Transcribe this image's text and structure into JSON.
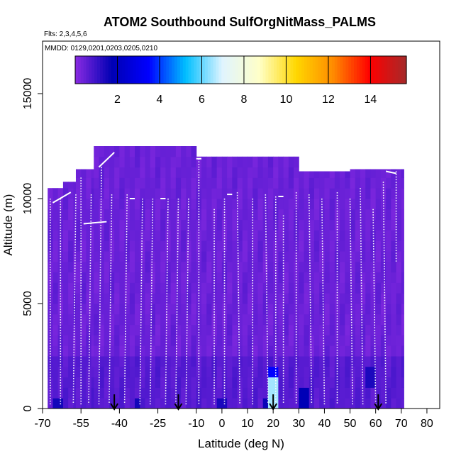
{
  "chart_data": {
    "type": "heatmap",
    "title": "ATOM2 Southbound SulfOrgNitMass_PALMS",
    "subtitle_flights": "Flts: 2,3,4,5,6",
    "subtitle_dates": "MMDD: 0129,0201,0203,0205,0210",
    "xlabel": "Latitude (deg N)",
    "ylabel": "Altitude (m)",
    "xlim": [
      -70,
      85
    ],
    "ylim": [
      0,
      17500
    ],
    "x_ticks": [
      -70,
      -55,
      -40,
      -25,
      -10,
      0,
      10,
      20,
      30,
      40,
      50,
      60,
      70,
      80
    ],
    "y_ticks": [
      0,
      5000,
      10000,
      15000
    ],
    "colorbar": {
      "range": [
        0,
        15.7
      ],
      "ticks": [
        2,
        4,
        6,
        8,
        10,
        12,
        14
      ],
      "stops": [
        "#8a2be2",
        "#0000b4",
        "#0000ff",
        "#00bfff",
        "#e0f4ff",
        "#ffffc8",
        "#ffd700",
        "#ff8c00",
        "#ff0000",
        "#a52a2a"
      ]
    },
    "background_value": 0.4,
    "arrows_at_lat": [
      -42,
      -17,
      20,
      61
    ],
    "coverage_columns": [
      {
        "lat0": -68,
        "lat1": -62,
        "top": 10500
      },
      {
        "lat0": -62,
        "lat1": -57,
        "top": 10800
      },
      {
        "lat0": -57,
        "lat1": -50,
        "top": 11400
      },
      {
        "lat0": -50,
        "lat1": -10,
        "top": 12500
      },
      {
        "lat0": -10,
        "lat1": 30,
        "top": 12000
      },
      {
        "lat0": 30,
        "lat1": 50,
        "top": 11300
      },
      {
        "lat0": 50,
        "lat1": 60,
        "top": 11400
      },
      {
        "lat0": 60,
        "lat1": 71,
        "top": 11400
      }
    ],
    "hotspots": [
      {
        "lat": 20,
        "alt0": 0,
        "alt1": 1600,
        "value": 6.5
      },
      {
        "lat": 20,
        "alt0": 1600,
        "alt1": 2000,
        "value": 3.5
      },
      {
        "lat": 19,
        "alt0": 0,
        "alt1": 500,
        "value": 2.2
      },
      {
        "lat": 17,
        "alt0": 0,
        "alt1": 400,
        "value": 1.6
      },
      {
        "lat": 32,
        "alt0": 0,
        "alt1": 1000,
        "value": 1.8
      },
      {
        "lat": -33,
        "alt0": 0,
        "alt1": 400,
        "value": 1.5
      },
      {
        "lat": -64,
        "alt0": 0,
        "alt1": 400,
        "value": 1.5
      },
      {
        "lat": 58,
        "alt0": 1200,
        "alt1": 2200,
        "value": 1.4
      },
      {
        "lat": 0,
        "alt0": 0,
        "alt1": 400,
        "value": 1.4
      }
    ],
    "flight_profiles": [
      {
        "lat_top": -67,
        "alt_top": 10000,
        "lat_bot": -67,
        "alt_bot": 200
      },
      {
        "lat_top": -63,
        "alt_top": 10000,
        "lat_bot": -63,
        "alt_bot": 200
      },
      {
        "lat_top": -57,
        "alt_top": 10200,
        "lat_bot": -58,
        "alt_bot": 200
      },
      {
        "lat_top": -55,
        "alt_top": 11000,
        "lat_bot": -55,
        "alt_bot": 200
      },
      {
        "lat_top": -51,
        "alt_top": 10200,
        "lat_bot": -52,
        "alt_bot": 200
      },
      {
        "lat_top": -47,
        "alt_top": 11500,
        "lat_bot": -48,
        "alt_bot": 200
      },
      {
        "lat_top": -43,
        "alt_top": 10200,
        "lat_bot": -44,
        "alt_bot": 200
      },
      {
        "lat_top": -37,
        "alt_top": 10200,
        "lat_bot": -38,
        "alt_bot": 200
      },
      {
        "lat_top": -31,
        "alt_top": 10000,
        "lat_bot": -32,
        "alt_bot": 200
      },
      {
        "lat_top": -27,
        "alt_top": 10000,
        "lat_bot": -28,
        "alt_bot": 200
      },
      {
        "lat_top": -21,
        "alt_top": 10000,
        "lat_bot": -22,
        "alt_bot": 200
      },
      {
        "lat_top": -17,
        "alt_top": 10000,
        "lat_bot": -18,
        "alt_bot": 200
      },
      {
        "lat_top": -13,
        "alt_top": 10000,
        "lat_bot": -14,
        "alt_bot": 200
      },
      {
        "lat_top": -9,
        "alt_top": 11900,
        "lat_bot": -9,
        "alt_bot": 200
      },
      {
        "lat_top": -3,
        "alt_top": 9500,
        "lat_bot": -3,
        "alt_bot": 200
      },
      {
        "lat_top": 1,
        "alt_top": 10000,
        "lat_bot": 1,
        "alt_bot": 200
      },
      {
        "lat_top": 6,
        "alt_top": 10300,
        "lat_bot": 7,
        "alt_bot": 200
      },
      {
        "lat_top": 12,
        "alt_top": 10000,
        "lat_bot": 12,
        "alt_bot": 200
      },
      {
        "lat_top": 17,
        "alt_top": 10200,
        "lat_bot": 18,
        "alt_bot": 200
      },
      {
        "lat_top": 21,
        "alt_top": 10100,
        "lat_bot": 21,
        "alt_bot": 200
      },
      {
        "lat_top": 24,
        "alt_top": 9200,
        "lat_bot": 24,
        "alt_bot": 200
      },
      {
        "lat_top": 29,
        "alt_top": 10300,
        "lat_bot": 29,
        "alt_bot": 200
      },
      {
        "lat_top": 34,
        "alt_top": 10200,
        "lat_bot": 35,
        "alt_bot": 200
      },
      {
        "lat_top": 39,
        "alt_top": 10000,
        "lat_bot": 40,
        "alt_bot": 200
      },
      {
        "lat_top": 45,
        "alt_top": 10300,
        "lat_bot": 45,
        "alt_bot": 200
      },
      {
        "lat_top": 50,
        "alt_top": 10000,
        "lat_bot": 51,
        "alt_bot": 200
      },
      {
        "lat_top": 54,
        "alt_top": 10500,
        "lat_bot": 55,
        "alt_bot": 200
      },
      {
        "lat_top": 59,
        "alt_top": 9500,
        "lat_bot": 60,
        "alt_bot": 200
      },
      {
        "lat_top": 63,
        "alt_top": 10800,
        "lat_bot": 64,
        "alt_bot": 200
      },
      {
        "lat_top": 68,
        "alt_top": 11300,
        "lat_bot": 68,
        "alt_bot": 7000
      }
    ],
    "flight_legs": [
      {
        "lat0": -66,
        "alt0": 9800,
        "lat1": -59,
        "alt1": 10300
      },
      {
        "lat0": -54,
        "alt0": 8800,
        "lat1": -45,
        "alt1": 8900
      },
      {
        "lat0": -48,
        "alt0": 11500,
        "lat1": -42,
        "alt1": 12200
      },
      {
        "lat0": -36,
        "alt0": 10000,
        "lat1": -34,
        "alt1": 10000
      },
      {
        "lat0": -24,
        "alt0": 10000,
        "lat1": -22,
        "alt1": 10000
      },
      {
        "lat0": -10,
        "alt0": 11900,
        "lat1": -8,
        "alt1": 11900
      },
      {
        "lat0": 2,
        "alt0": 10200,
        "lat1": 4,
        "alt1": 10200
      },
      {
        "lat0": 22,
        "alt0": 10100,
        "lat1": 24,
        "alt1": 10100
      },
      {
        "lat0": 64,
        "alt0": 11300,
        "lat1": 68,
        "alt1": 11200
      }
    ]
  }
}
